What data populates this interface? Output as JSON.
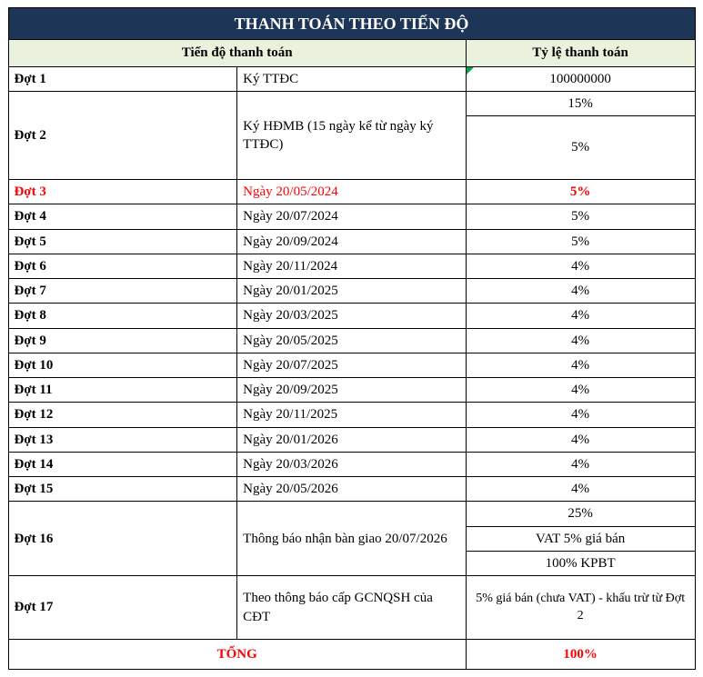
{
  "title": "THANH TOÁN THEO TIẾN ĐỘ",
  "headers": {
    "progress": "Tiến độ thanh toán",
    "rate": "Tỷ lệ thanh toán"
  },
  "rows": {
    "r1": {
      "dot": "Đợt 1",
      "desc": "Ký TTĐC",
      "rate": "100000000"
    },
    "r2": {
      "dot": "Đợt 2",
      "desc": "Ký HĐMB (15 ngày kể từ ngày ký TTĐC)",
      "rate_a": "15%",
      "rate_b": "5%"
    },
    "r3": {
      "dot": "Đợt 3",
      "desc": "Ngày 20/05/2024",
      "rate": "5%"
    },
    "r4": {
      "dot": "Đợt 4",
      "desc": "Ngày 20/07/2024",
      "rate": "5%"
    },
    "r5": {
      "dot": "Đợt 5",
      "desc": "Ngày 20/09/2024",
      "rate": "5%"
    },
    "r6": {
      "dot": "Đợt 6",
      "desc": "Ngày 20/11/2024",
      "rate": "4%"
    },
    "r7": {
      "dot": "Đợt 7",
      "desc": "Ngày 20/01/2025",
      "rate": "4%"
    },
    "r8": {
      "dot": "Đợt 8",
      "desc": "Ngày 20/03/2025",
      "rate": "4%"
    },
    "r9": {
      "dot": "Đợt 9",
      "desc": "Ngày 20/05/2025",
      "rate": "4%"
    },
    "r10": {
      "dot": "Đợt 10",
      "desc": "Ngày 20/07/2025",
      "rate": "4%"
    },
    "r11": {
      "dot": "Đợt 11",
      "desc": "Ngày 20/09/2025",
      "rate": "4%"
    },
    "r12": {
      "dot": "Đợt 12",
      "desc": "Ngày 20/11/2025",
      "rate": "4%"
    },
    "r13": {
      "dot": "Đợt 13",
      "desc": "Ngày 20/01/2026",
      "rate": "4%"
    },
    "r14": {
      "dot": "Đợt 14",
      "desc": "Ngày 20/03/2026",
      "rate": "4%"
    },
    "r15": {
      "dot": "Đợt 15",
      "desc": "Ngày 20/05/2026",
      "rate": "4%"
    },
    "r16": {
      "dot": "Đợt 16",
      "desc": "Thông báo nhận bàn giao 20/07/2026",
      "rate_a": "25%",
      "rate_b": "VAT 5% giá bán",
      "rate_c": "100% KPBT"
    },
    "r17": {
      "dot": "Đợt 17",
      "desc": "Theo thông báo cấp GCNQSH của CĐT",
      "rate": "5% giá bán (chưa VAT) - khấu trừ từ Đợt 2"
    }
  },
  "total": {
    "label": "TỔNG",
    "value": "100%"
  },
  "colors": {
    "header_bg": "#1d3557",
    "subheader_bg": "#eaf1dd",
    "highlight_text": "#ff0000",
    "triangle": "#00a651",
    "border": "#000000",
    "background": "#ffffff"
  }
}
